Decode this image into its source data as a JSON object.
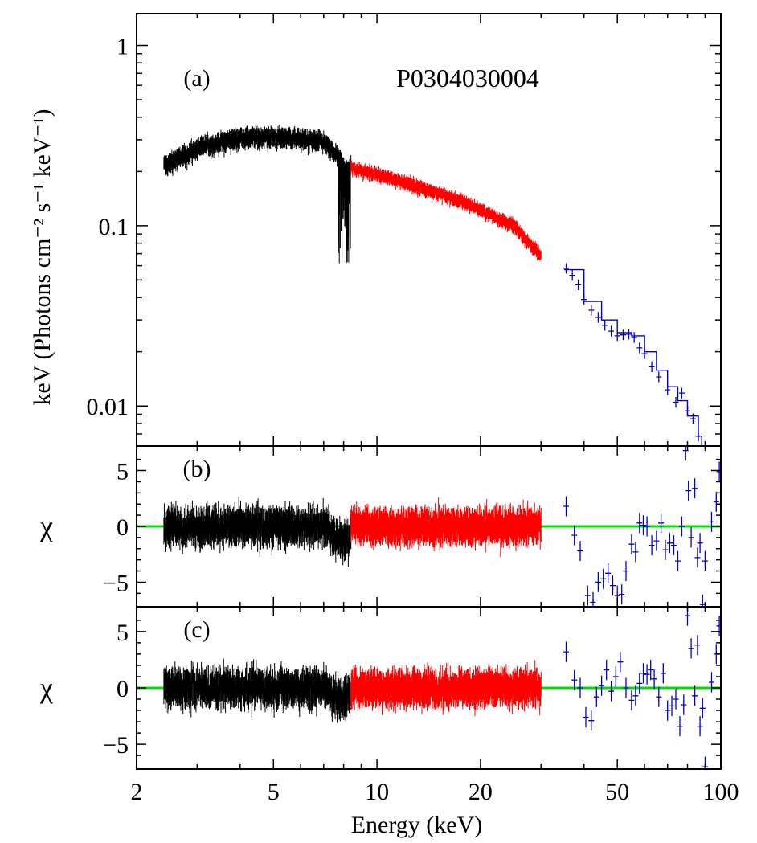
{
  "chart_data": [
    {
      "panel": "a",
      "type": "line",
      "annotation": "(a)",
      "title": "P0304030004",
      "ylabel": "keV (Photons cm⁻² s⁻¹ keV⁻¹)",
      "xscale": "log",
      "yscale": "log",
      "xlim": [
        2,
        100
      ],
      "ylim": [
        0.006,
        1.5
      ],
      "yticks": [
        {
          "v": 0.01,
          "label": "0.01"
        },
        {
          "v": 0.1,
          "label": "0.1"
        },
        {
          "v": 1,
          "label": "1"
        }
      ],
      "series": [
        {
          "name": "segment 1",
          "color": "#000000",
          "x_range": [
            2.4,
            8.4
          ],
          "trend": [
            [
              2.4,
              0.215
            ],
            [
              3.0,
              0.27
            ],
            [
              4.0,
              0.31
            ],
            [
              5.5,
              0.31
            ],
            [
              7.0,
              0.29
            ],
            [
              7.7,
              0.24
            ],
            [
              8.2,
              0.2
            ],
            [
              8.4,
              0.22
            ]
          ],
          "scatter": 0.12
        },
        {
          "name": "segment 2",
          "color": "#ff0000",
          "x_range": [
            8.4,
            30
          ],
          "trend": [
            [
              8.4,
              0.21
            ],
            [
              12,
              0.175
            ],
            [
              18,
              0.135
            ],
            [
              25,
              0.1
            ],
            [
              30,
              0.068
            ]
          ],
          "scatter": 0.08
        },
        {
          "name": "segment 3",
          "color": "#0000cc",
          "x_range": [
            35,
            86
          ],
          "points": [
            [
              35.5,
              0.058
            ],
            [
              37,
              0.053
            ],
            [
              38.5,
              0.047
            ],
            [
              40,
              0.039
            ],
            [
              42,
              0.034
            ],
            [
              44,
              0.031
            ],
            [
              46,
              0.028
            ],
            [
              48,
              0.026
            ],
            [
              50,
              0.0245
            ],
            [
              52,
              0.0248
            ],
            [
              54,
              0.025
            ],
            [
              56,
              0.024
            ],
            [
              58,
              0.021
            ],
            [
              60,
              0.0195
            ],
            [
              63,
              0.0165
            ],
            [
              66,
              0.0145
            ],
            [
              70,
              0.0123
            ],
            [
              74,
              0.0105
            ],
            [
              77,
              0.0118
            ],
            [
              80,
              0.0094
            ],
            [
              83,
              0.0085
            ],
            [
              86,
              0.0068
            ]
          ],
          "model": [
            [
              35,
              0.057
            ],
            [
              40,
              0.038
            ],
            [
              45,
              0.03
            ],
            [
              50,
              0.0255
            ],
            [
              55,
              0.0245
            ],
            [
              60,
              0.02
            ],
            [
              65,
              0.0158
            ],
            [
              70,
              0.0128
            ],
            [
              75,
              0.0107
            ],
            [
              80,
              0.0088
            ],
            [
              86,
              0.0068
            ],
            [
              88,
              0.006
            ]
          ]
        }
      ]
    },
    {
      "panel": "b",
      "type": "scatter",
      "annotation": "(b)",
      "ylabel": "χ",
      "xscale": "log",
      "xlim": [
        2,
        100
      ],
      "ylim": [
        -7.2,
        7.2
      ],
      "yticks": [
        {
          "v": 5,
          "label": "5"
        },
        {
          "v": 0,
          "label": "0"
        },
        {
          "v": -5,
          "label": "−5"
        }
      ],
      "reference_line": {
        "y": 0,
        "color": "#00e000"
      },
      "series": [
        {
          "name": "segment 1 residuals",
          "color": "#000000",
          "x_range": [
            2.4,
            8.4
          ],
          "band": 1.6,
          "dip": [
            7.3,
            8.4,
            -1.5
          ]
        },
        {
          "name": "segment 2 residuals",
          "color": "#ff0000",
          "x_range": [
            8.4,
            30
          ],
          "band": 1.5
        },
        {
          "name": "segment 3 residuals",
          "color": "#0000cc",
          "points": [
            [
              35.5,
              1.8
            ],
            [
              37.5,
              -0.8
            ],
            [
              39,
              -2.2
            ],
            [
              41,
              -6.2
            ],
            [
              42.5,
              -6.8
            ],
            [
              44,
              -5
            ],
            [
              45.5,
              -4.7
            ],
            [
              47,
              -4.2
            ],
            [
              48.5,
              -5.3
            ],
            [
              50,
              -6.2
            ],
            [
              51.5,
              -6.1
            ],
            [
              53,
              -4
            ],
            [
              55,
              -1.6
            ],
            [
              56.5,
              -2.3
            ],
            [
              58,
              0.3
            ],
            [
              59.5,
              0.1
            ],
            [
              61,
              0
            ],
            [
              63,
              -1.7
            ],
            [
              65,
              -1.3
            ],
            [
              67,
              0.3
            ],
            [
              69,
              -2.1
            ],
            [
              71,
              -1.5
            ],
            [
              73,
              -1.7
            ],
            [
              75,
              -3.1
            ],
            [
              77,
              0
            ],
            [
              79,
              6.8
            ],
            [
              80.5,
              3.2
            ],
            [
              82,
              -1
            ],
            [
              84,
              3.4
            ],
            [
              85.5,
              -2.8
            ],
            [
              87,
              -1.5
            ],
            [
              88.5,
              -7
            ],
            [
              90,
              -3.1
            ],
            [
              94,
              0.4
            ],
            [
              97,
              2.2
            ],
            [
              99,
              4.9
            ]
          ]
        }
      ]
    },
    {
      "panel": "c",
      "type": "scatter",
      "annotation": "(c)",
      "ylabel": "χ",
      "xlabel": "Energy (keV)",
      "xscale": "log",
      "xlim": [
        2,
        100
      ],
      "ylim": [
        -7.2,
        7.2
      ],
      "xticks": [
        {
          "v": 2,
          "label": "2"
        },
        {
          "v": 5,
          "label": "5"
        },
        {
          "v": 10,
          "label": "10"
        },
        {
          "v": 20,
          "label": "20"
        },
        {
          "v": 50,
          "label": "50"
        },
        {
          "v": 100,
          "label": "100"
        }
      ],
      "yticks": [
        {
          "v": 5,
          "label": "5"
        },
        {
          "v": 0,
          "label": "0"
        },
        {
          "v": -5,
          "label": "−5"
        }
      ],
      "reference_line": {
        "y": 0,
        "color": "#00e000"
      },
      "series": [
        {
          "name": "segment 1 residuals",
          "color": "#000000",
          "x_range": [
            2.4,
            8.4
          ],
          "band": 1.6,
          "dip": [
            7.3,
            8.4,
            -1.0
          ]
        },
        {
          "name": "segment 2 residuals",
          "color": "#ff0000",
          "x_range": [
            8.4,
            30
          ],
          "band": 1.5
        },
        {
          "name": "segment 3 residuals",
          "color": "#0000cc",
          "points": [
            [
              35.5,
              3.2
            ],
            [
              37.5,
              0.7
            ],
            [
              39,
              0
            ],
            [
              40.5,
              -2.6
            ],
            [
              42,
              -2.9
            ],
            [
              43.5,
              -0.8
            ],
            [
              45,
              0.2
            ],
            [
              46.5,
              1.6
            ],
            [
              48,
              -0.3
            ],
            [
              49.5,
              1
            ],
            [
              51,
              2.3
            ],
            [
              53,
              0
            ],
            [
              55,
              -1.1
            ],
            [
              56.5,
              -0.7
            ],
            [
              58,
              0.4
            ],
            [
              59.5,
              1.3
            ],
            [
              61,
              1.2
            ],
            [
              62.5,
              1.6
            ],
            [
              64,
              0.8
            ],
            [
              66,
              -0.8
            ],
            [
              68,
              1.3
            ],
            [
              70,
              -2
            ],
            [
              72,
              -1.6
            ],
            [
              74,
              -1
            ],
            [
              76,
              -3.4
            ],
            [
              78,
              -1.5
            ],
            [
              80,
              6.4
            ],
            [
              82,
              3.5
            ],
            [
              84,
              -0.7
            ],
            [
              85.5,
              3.8
            ],
            [
              87,
              -3.4
            ],
            [
              88.5,
              -1.8
            ],
            [
              90,
              -7
            ],
            [
              94,
              0.5
            ],
            [
              97,
              3
            ],
            [
              99,
              5.5
            ]
          ]
        }
      ]
    }
  ]
}
